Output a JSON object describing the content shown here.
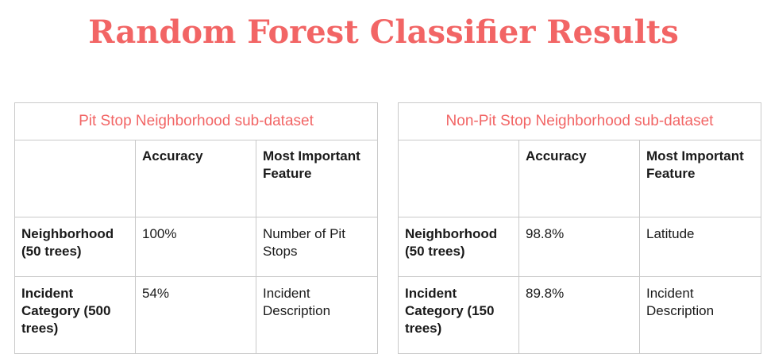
{
  "title": "Random Forest Classifier Results",
  "colors": {
    "accent": "#f26565",
    "border": "#c9c9c9",
    "text": "#1a1a1a"
  },
  "tables": [
    {
      "caption": "Pit Stop Neighborhood sub-dataset",
      "headers": [
        "",
        "Accuracy",
        "Most Important Feature"
      ],
      "rows": [
        {
          "label": "Neighborhood (50 trees)",
          "accuracy": "100%",
          "feature": "Number of Pit Stops"
        },
        {
          "label": "Incident Category (500 trees)",
          "accuracy": "54%",
          "feature": "Incident Description"
        }
      ]
    },
    {
      "caption": "Non-Pit Stop Neighborhood sub-dataset",
      "headers": [
        "",
        "Accuracy",
        "Most Important Feature"
      ],
      "rows": [
        {
          "label": "Neighborhood (50 trees)",
          "accuracy": "98.8%",
          "feature": "Latitude"
        },
        {
          "label": "Incident Category (150 trees)",
          "accuracy": "89.8%",
          "feature": "Incident Description"
        }
      ]
    }
  ]
}
